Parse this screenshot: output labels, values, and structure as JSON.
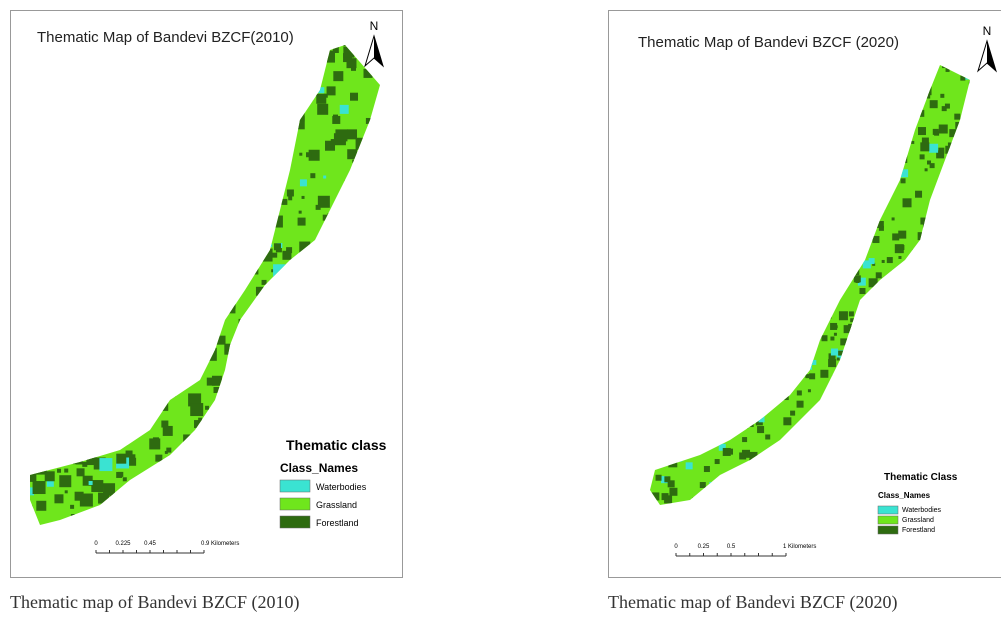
{
  "maps": [
    {
      "title": "Thematic Map of Bandevi BZCF(2010)",
      "north": "N",
      "legend": {
        "title": "Thematic class",
        "subtitle": "Class_Names",
        "items": [
          {
            "label": "Waterbodies",
            "color": "#3ae3d2"
          },
          {
            "label": "Grassland",
            "color": "#6fe61c"
          },
          {
            "label": "Forestland",
            "color": "#2e6b10"
          }
        ]
      },
      "scale": [
        "0",
        "0.225",
        "0.45",
        "0.9 Kilometers"
      ],
      "caption": "Thematic map of Bandevi BZCF (2010)"
    },
    {
      "title": "Thematic Map of Bandevi BZCF (2020)",
      "north": "N",
      "legend": {
        "title": "Thematic Class",
        "subtitle": "Class_Names",
        "items": [
          {
            "label": "Waterbodies",
            "color": "#3ae3d2"
          },
          {
            "label": "Grassland",
            "color": "#6fe61c"
          },
          {
            "label": "Forestland",
            "color": "#2e6b10"
          }
        ]
      },
      "scale": [
        "0",
        "0.25",
        "0.5",
        "1 Kilometers"
      ],
      "caption": "Thematic map of Bandevi BZCF (2020)"
    }
  ]
}
